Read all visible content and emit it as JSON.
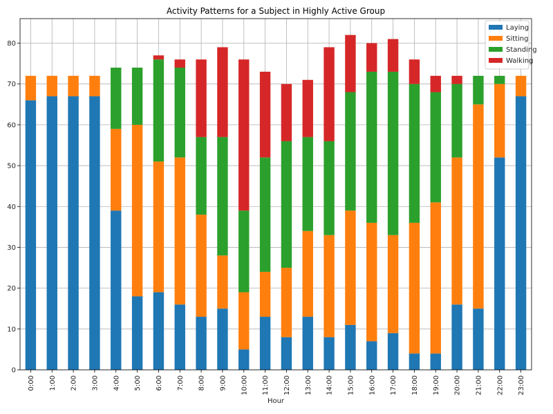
{
  "chart_data": {
    "type": "bar",
    "stacked": true,
    "title": "Activity Patterns for a Subject in Highly Active Group",
    "xlabel": "Hour",
    "ylabel": "",
    "ylim": [
      0,
      86
    ],
    "yticks": [
      0,
      10,
      20,
      30,
      40,
      50,
      60,
      70,
      80
    ],
    "grid": true,
    "legend_position": "top-right",
    "categories": [
      "0:00",
      "1:00",
      "2:00",
      "3:00",
      "4:00",
      "5:00",
      "6:00",
      "7:00",
      "8:00",
      "9:00",
      "10:00",
      "11:00",
      "12:00",
      "13:00",
      "14:00",
      "15:00",
      "16:00",
      "17:00",
      "18:00",
      "19:00",
      "20:00",
      "21:00",
      "22:00",
      "23:00"
    ],
    "series": [
      {
        "name": "Laying",
        "color": "#1f77b4",
        "values": [
          66,
          67,
          67,
          67,
          39,
          18,
          19,
          16,
          13,
          15,
          5,
          13,
          8,
          13,
          8,
          11,
          7,
          9,
          4,
          4,
          16,
          15,
          52,
          67
        ]
      },
      {
        "name": "Sitting",
        "color": "#ff7f0e",
        "values": [
          6,
          5,
          5,
          5,
          20,
          42,
          32,
          36,
          25,
          13,
          14,
          11,
          17,
          21,
          25,
          28,
          29,
          24,
          32,
          37,
          36,
          50,
          18,
          5
        ]
      },
      {
        "name": "Standing",
        "color": "#2ca02c",
        "values": [
          0,
          0,
          0,
          0,
          15,
          14,
          25,
          22,
          19,
          29,
          20,
          28,
          31,
          23,
          23,
          29,
          37,
          40,
          34,
          27,
          18,
          7,
          2,
          0
        ]
      },
      {
        "name": "Walking",
        "color": "#d62728",
        "values": [
          0,
          0,
          0,
          0,
          0,
          0,
          1,
          2,
          19,
          22,
          37,
          21,
          14,
          14,
          23,
          14,
          7,
          8,
          6,
          4,
          2,
          0,
          0,
          0
        ]
      }
    ]
  }
}
